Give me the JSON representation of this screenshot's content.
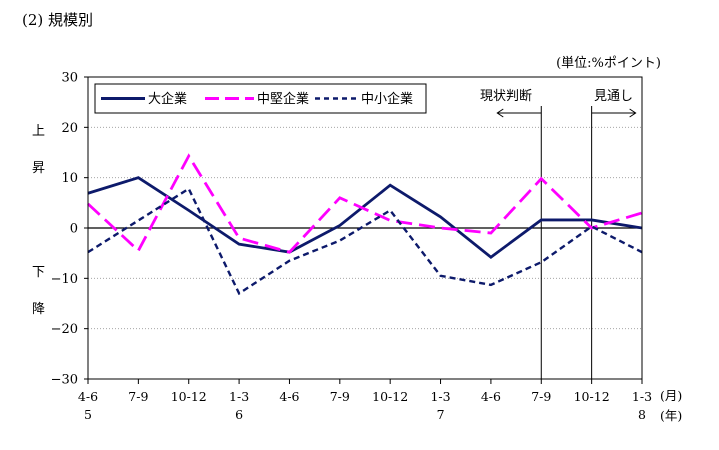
{
  "section_title": "(2) 規模別",
  "unit_note": "(単位:%ポイント)",
  "y_side_label_up": [
    "上",
    "昇"
  ],
  "y_side_label_down": [
    "下",
    "降"
  ],
  "month_unit": "(月)",
  "year_unit": "(年)",
  "annotations": {
    "actual": "現状判断",
    "outlook": "見通し"
  },
  "chart_data": {
    "type": "line",
    "categories": [
      "4-6",
      "7-9",
      "10-12",
      "1-3",
      "4-6",
      "7-9",
      "10-12",
      "1-3",
      "4-6",
      "7-9",
      "10-12",
      "1-3"
    ],
    "year_labels": [
      {
        "index": 0,
        "label": "5"
      },
      {
        "index": 3,
        "label": "6"
      },
      {
        "index": 7,
        "label": "7"
      },
      {
        "index": 11,
        "label": "8"
      }
    ],
    "ylim": [
      -30,
      30
    ],
    "yticks": [
      -30,
      -20,
      -10,
      0,
      10,
      20,
      30
    ],
    "ytick_labels": [
      "−30",
      "−20",
      "−10",
      "0",
      "10",
      "20",
      "30"
    ],
    "grid": true,
    "legend_position": "top-left",
    "actual_marker_index": 9,
    "outlook_marker_index": 10,
    "series": [
      {
        "name": "大企業",
        "color": "#0d1a6b",
        "dash": "solid",
        "values": [
          6.9,
          10.0,
          3.5,
          -3.2,
          -4.8,
          0.5,
          8.5,
          2.2,
          -5.8,
          1.6,
          1.6,
          0.0
        ]
      },
      {
        "name": "中堅企業",
        "color": "#ff00ff",
        "dash": "long",
        "values": [
          4.8,
          -4.5,
          14.3,
          -2.0,
          -4.8,
          6.0,
          1.5,
          0.0,
          -1.0,
          9.8,
          0.0,
          3.0
        ]
      },
      {
        "name": "中小企業",
        "color": "#0d1a6b",
        "dash": "short",
        "values": [
          -4.8,
          1.5,
          7.8,
          -13.0,
          -6.5,
          -2.5,
          3.5,
          -9.5,
          -11.3,
          -6.8,
          0.3,
          -4.8
        ]
      }
    ]
  }
}
